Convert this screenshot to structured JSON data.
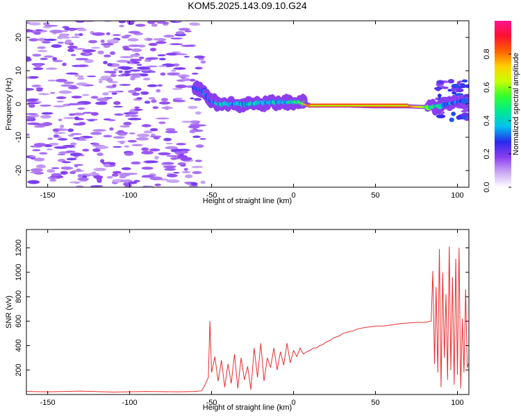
{
  "figure_title": "KOM5.2025.143.09.10.G24",
  "chart_data": [
    {
      "type": "heatmap",
      "title": "",
      "xlabel": "Height of straight line (km)",
      "ylabel": "Frequency (Hz)",
      "xlim": [
        -163,
        107
      ],
      "ylim": [
        -25,
        25
      ],
      "xticks": [
        -150,
        -100,
        -50,
        0,
        50,
        100
      ],
      "yticks": [
        -20,
        -10,
        0,
        10,
        20
      ],
      "colorbar": {
        "label": "Normalized spectral amplitude",
        "range": [
          0.0,
          1.0
        ],
        "ticks": [
          0.0,
          0.2,
          0.4,
          0.6,
          0.8
        ],
        "colors": [
          "#ffffff",
          "#c9a7f2",
          "#8a3cf0",
          "#2a2af0",
          "#00c0f0",
          "#00e890",
          "#30ff30",
          "#c8ff00",
          "#ffd000",
          "#ff6000",
          "#ff1030",
          "#ff1490"
        ]
      },
      "background_noise_amplitude": 0.15,
      "band": [
        {
          "x": -60,
          "y": 5,
          "amp": 0.28
        },
        {
          "x": -55,
          "y": 4,
          "amp": 0.3
        },
        {
          "x": -50,
          "y": 1,
          "amp": 0.3
        },
        {
          "x": -45,
          "y": 0,
          "amp": 0.38
        },
        {
          "x": -35,
          "y": 0,
          "amp": 0.32
        },
        {
          "x": -25,
          "y": 0,
          "amp": 0.38
        },
        {
          "x": -15,
          "y": 0.5,
          "amp": 0.36
        },
        {
          "x": -5,
          "y": 0.5,
          "amp": 0.38
        },
        {
          "x": 5,
          "y": 0.5,
          "amp": 0.5
        },
        {
          "x": 10,
          "y": -0.5,
          "amp": 0.8
        },
        {
          "x": 35,
          "y": -0.5,
          "amp": 0.85
        },
        {
          "x": 50,
          "y": -0.7,
          "amp": 0.88
        },
        {
          "x": 70,
          "y": -0.7,
          "amp": 0.85
        },
        {
          "x": 85,
          "y": -1,
          "amp": 0.5
        },
        {
          "x": 95,
          "y": 0,
          "amp": 0.3
        },
        {
          "x": 105,
          "y": 1,
          "amp": 0.3
        }
      ]
    },
    {
      "type": "line",
      "title": "",
      "xlabel": "Height of straight line (km)",
      "ylabel": "SNR (v/v)",
      "xlim": [
        -163,
        107
      ],
      "ylim": [
        0,
        1350
      ],
      "xticks": [
        -150,
        -100,
        -50,
        0,
        50,
        100
      ],
      "yticks": [
        200,
        400,
        600,
        800,
        1000,
        1200
      ],
      "series": [
        {
          "color": "#e82c2c",
          "x": [
            -163,
            -150,
            -130,
            -110,
            -90,
            -70,
            -60,
            -56,
            -54,
            -52,
            -51,
            -50,
            -48,
            -46,
            -44,
            -42,
            -40,
            -38,
            -36,
            -34,
            -32,
            -30,
            -28,
            -26,
            -24,
            -22,
            -20,
            -18,
            -16,
            -14,
            -12,
            -10,
            -8,
            -6,
            -4,
            -2,
            0,
            2,
            4,
            6,
            8,
            10,
            12,
            14,
            16,
            18,
            20,
            22,
            24,
            26,
            28,
            30,
            33,
            36,
            40,
            45,
            50,
            55,
            60,
            65,
            70,
            75,
            80,
            84,
            85,
            86,
            87,
            88,
            89,
            90,
            91,
            92,
            93,
            94,
            95,
            96,
            97,
            98,
            99,
            100,
            101,
            102,
            103,
            104,
            105,
            106,
            107
          ],
          "values": [
            25,
            22,
            28,
            20,
            25,
            22,
            25,
            30,
            80,
            140,
            600,
            180,
            310,
            110,
            280,
            60,
            250,
            90,
            330,
            50,
            300,
            120,
            230,
            40,
            380,
            140,
            420,
            110,
            300,
            220,
            380,
            200,
            350,
            240,
            420,
            260,
            360,
            310,
            380,
            330,
            350,
            360,
            380,
            380,
            400,
            410,
            430,
            440,
            460,
            470,
            480,
            500,
            510,
            520,
            540,
            550,
            560,
            560,
            570,
            580,
            585,
            590,
            590,
            600,
            1010,
            250,
            880,
            180,
            1190,
            60,
            1000,
            300,
            820,
            120,
            1210,
            200,
            960,
            80,
            1110,
            160,
            1200,
            50,
            620,
            180,
            860,
            220,
            260
          ]
        }
      ]
    }
  ]
}
